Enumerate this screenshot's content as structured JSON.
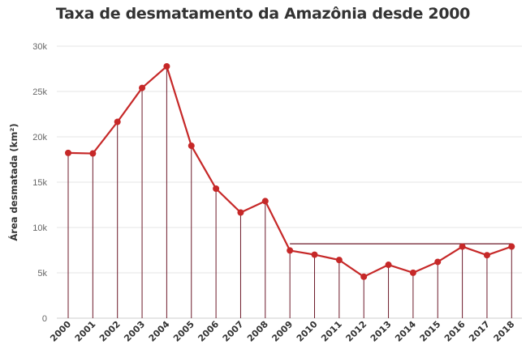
{
  "chart_data": {
    "type": "line",
    "title": "Taxa de desmatamento da Amazônia desde 2000",
    "xlabel": "",
    "ylabel": "Área desmatada (km²)",
    "categories": [
      "2000",
      "2001",
      "2002",
      "2003",
      "2004",
      "2005",
      "2006",
      "2007",
      "2008",
      "2009",
      "2010",
      "2011",
      "2012",
      "2013",
      "2014",
      "2015",
      "2016",
      "2017",
      "2018"
    ],
    "series": [
      {
        "values": [
          18226,
          18165,
          21651,
          25396,
          27772,
          19014,
          14286,
          11651,
          12911,
          7464,
          7000,
          6418,
          4571,
          5891,
          5012,
          6207,
          7893,
          6947,
          7900
        ]
      }
    ],
    "reference_line": {
      "from": "2009",
      "to": "2018",
      "value": 8200
    },
    "ylim": [
      0,
      30000
    ],
    "yticks": [
      {
        "value": 0,
        "label": "0"
      },
      {
        "value": 5000,
        "label": "5k"
      },
      {
        "value": 10000,
        "label": "10k"
      },
      {
        "value": 15000,
        "label": "15k"
      },
      {
        "value": 20000,
        "label": "20k"
      },
      {
        "value": 25000,
        "label": "25k"
      },
      {
        "value": 30000,
        "label": "30k"
      }
    ],
    "grid": true,
    "colors": {
      "line": "#c62828",
      "marker": "#c62828",
      "drop_lines": "#6d1a2a",
      "grid": "#e6e6e6",
      "axis": "#cccccc"
    }
  }
}
